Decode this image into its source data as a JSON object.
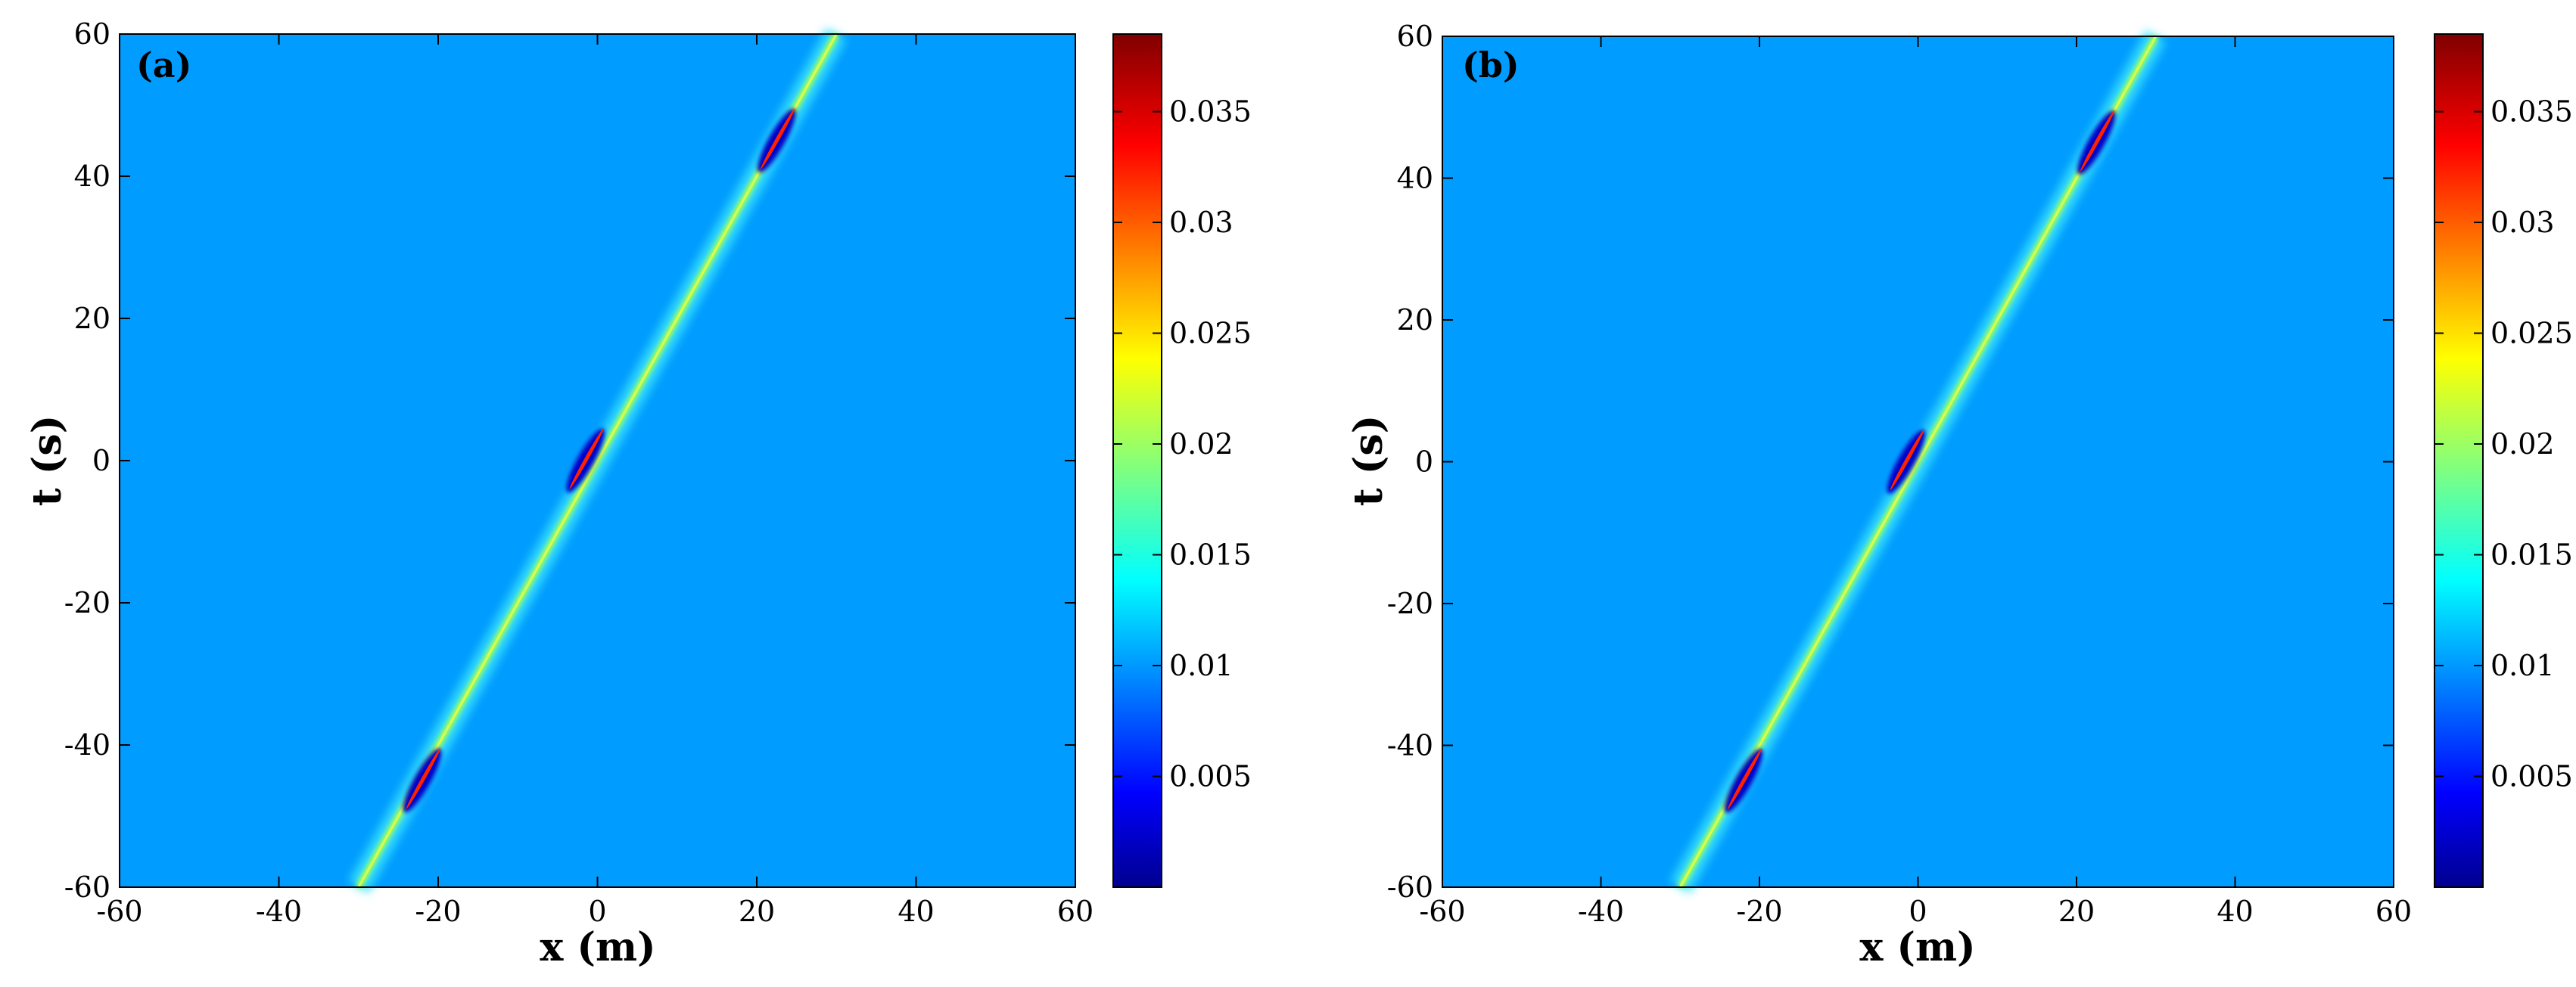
{
  "chart_data": [
    {
      "type": "heatmap",
      "panel_label": "(a)",
      "xlabel": "x (m)",
      "ylabel": "t (s)",
      "xlim": [
        -60,
        60
      ],
      "ylim": [
        -60,
        60
      ],
      "xticks": [
        "-60",
        "-40",
        "-20",
        "0",
        "20",
        "40",
        "60"
      ],
      "yticks": [
        "-60",
        "-40",
        "-20",
        "0",
        "20",
        "40",
        "60"
      ],
      "background_value": 0.0107,
      "soliton": {
        "x_at_t_minus_60": -30,
        "x_at_t_60": 30,
        "peak_value": 0.038
      },
      "dark_spots": [
        {
          "x": -22,
          "t": -45,
          "value": 0.001
        },
        {
          "x": -1.5,
          "t": 0,
          "value": 0.001
        },
        {
          "x": 22.5,
          "t": 45,
          "value": 0.001
        }
      ],
      "colorbar": {
        "min": 0,
        "max": 0.0385,
        "ticks": [
          "0.005",
          "0.01",
          "0.015",
          "0.02",
          "0.025",
          "0.03",
          "0.035"
        ],
        "colormap": "jet"
      }
    },
    {
      "type": "heatmap",
      "panel_label": "(b)",
      "xlabel": "x (m)",
      "ylabel": "t (s)",
      "xlim": [
        -60,
        60
      ],
      "ylim": [
        -60,
        60
      ],
      "xticks": [
        "-60",
        "-40",
        "-20",
        "0",
        "20",
        "40",
        "60"
      ],
      "yticks": [
        "-60",
        "-40",
        "-20",
        "0",
        "20",
        "40",
        "60"
      ],
      "background_value": 0.0107,
      "soliton": {
        "x_at_t_minus_60": -30,
        "x_at_t_60": 30,
        "peak_value": 0.038
      },
      "dark_spots": [
        {
          "x": -22,
          "t": -45,
          "value": 0.001
        },
        {
          "x": -1.5,
          "t": 0,
          "value": 0.001
        },
        {
          "x": 22.5,
          "t": 45,
          "value": 0.001
        }
      ],
      "colorbar": {
        "min": 0,
        "max": 0.0385,
        "ticks": [
          "0.005",
          "0.01",
          "0.015",
          "0.02",
          "0.025",
          "0.03",
          "0.035"
        ],
        "colormap": "jet"
      }
    }
  ]
}
